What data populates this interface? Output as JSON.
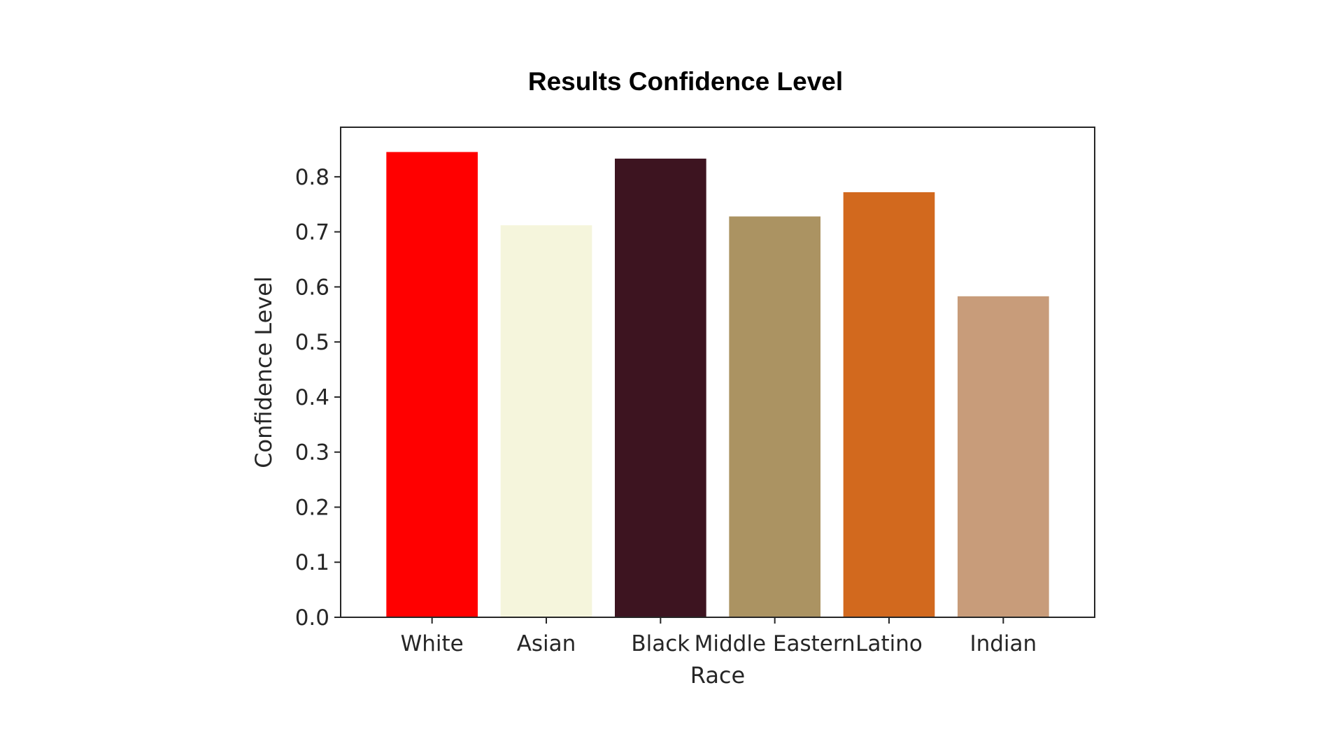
{
  "chart_data": {
    "type": "bar",
    "title": "Results Confidence Level",
    "xlabel": "Race",
    "ylabel": "Confidence Level",
    "categories": [
      "White",
      "Asian",
      "Black",
      "Middle Eastern",
      "Latino",
      "Indian"
    ],
    "values": [
      0.845,
      0.712,
      0.833,
      0.728,
      0.772,
      0.583
    ],
    "colors": [
      "#ff0000",
      "#f5f5dc",
      "#3d1420",
      "#ab9362",
      "#d2691e",
      "#c89c7a"
    ],
    "yticks": [
      "0.0",
      "0.1",
      "0.2",
      "0.3",
      "0.4",
      "0.5",
      "0.6",
      "0.7",
      "0.8"
    ],
    "ylim": [
      0,
      0.89
    ],
    "grid": false,
    "legend": "none"
  }
}
